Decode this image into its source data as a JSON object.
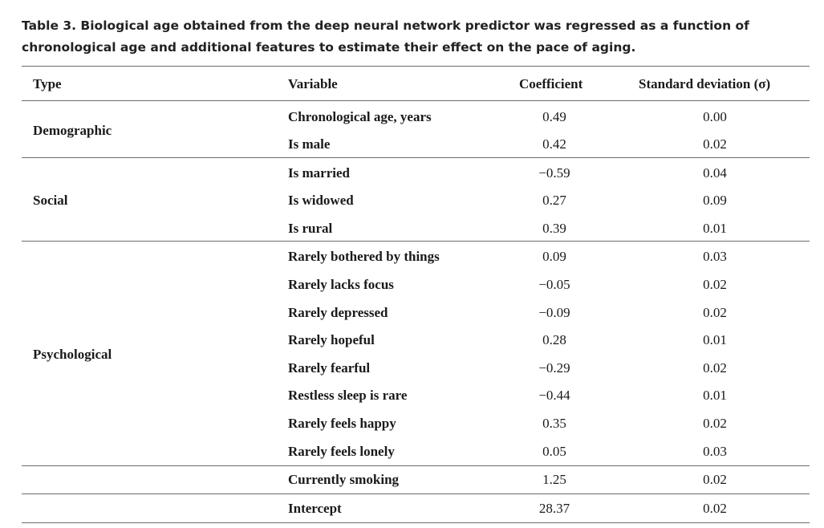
{
  "caption": "Table 3. Biological age obtained from the deep neural network predictor was regressed as a function of chronological age and additional features to estimate their effect on the pace of aging.",
  "headers": {
    "type": "Type",
    "variable": "Variable",
    "coefficient": "Coefficient",
    "sd": "Standard deviation (σ)"
  },
  "groups": [
    {
      "label": "Demographic"
    },
    {
      "label": "Social"
    },
    {
      "label": "Psychological"
    },
    {
      "label": ""
    },
    {
      "label": ""
    }
  ],
  "rows": [
    {
      "variable": "Chronological age, years",
      "coefficient": "0.49",
      "sd": "0.00"
    },
    {
      "variable": "Is male",
      "coefficient": "0.42",
      "sd": "0.02"
    },
    {
      "variable": "Is married",
      "coefficient": "−0.59",
      "sd": "0.04"
    },
    {
      "variable": "Is widowed",
      "coefficient": "0.27",
      "sd": "0.09"
    },
    {
      "variable": "Is rural",
      "coefficient": "0.39",
      "sd": "0.01"
    },
    {
      "variable": "Rarely bothered by things",
      "coefficient": "0.09",
      "sd": "0.03"
    },
    {
      "variable": "Rarely lacks focus",
      "coefficient": "−0.05",
      "sd": "0.02"
    },
    {
      "variable": "Rarely depressed",
      "coefficient": "−0.09",
      "sd": "0.02"
    },
    {
      "variable": "Rarely hopeful",
      "coefficient": "0.28",
      "sd": "0.01"
    },
    {
      "variable": "Rarely fearful",
      "coefficient": "−0.29",
      "sd": "0.02"
    },
    {
      "variable": "Restless sleep is rare",
      "coefficient": "−0.44",
      "sd": "0.01"
    },
    {
      "variable": "Rarely feels happy",
      "coefficient": "0.35",
      "sd": "0.02"
    },
    {
      "variable": "Rarely feels lonely",
      "coefficient": "0.05",
      "sd": "0.03"
    },
    {
      "variable": "Currently smoking",
      "coefficient": "1.25",
      "sd": "0.02"
    },
    {
      "variable": "Intercept",
      "coefficient": "28.37",
      "sd": "0.02"
    }
  ]
}
